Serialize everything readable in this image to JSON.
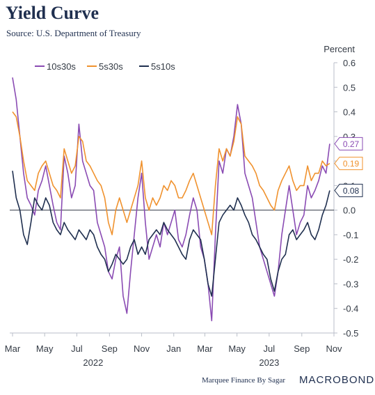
{
  "header": {
    "title": "Yield Curve",
    "subtitle": "Source: U.S. Department of Treasury"
  },
  "footer": {
    "credit": "Marquee Finance By Sagar",
    "brand": "MACROBOND"
  },
  "chart_data": {
    "type": "line",
    "title": "Yield Curve",
    "subtitle": "Source: U.S. Department of Treasury",
    "ylabel": "Percent",
    "ylim": [
      -0.5,
      0.6
    ],
    "yticks": [
      -0.5,
      -0.4,
      -0.3,
      -0.2,
      -0.1,
      0.0,
      0.1,
      0.2,
      0.3,
      0.4,
      0.5,
      0.6
    ],
    "ytick_labels": [
      "-0.5",
      "-0.4",
      "-0.3",
      "-0.2",
      "-0.1",
      "0.0",
      "0.1",
      "0.2",
      "0.3",
      "0.4",
      "0.5",
      "0.6"
    ],
    "xlim": [
      "2022-03-01",
      "2023-11-01"
    ],
    "xticks": [
      "2022-03-01",
      "2022-05-01",
      "2022-07-01",
      "2022-09-01",
      "2022-11-01",
      "2023-01-01",
      "2023-03-01",
      "2023-05-01",
      "2023-07-01",
      "2023-09-01",
      "2023-11-01"
    ],
    "xtick_labels": [
      "Mar",
      "May",
      "Jul",
      "Sep",
      "Nov",
      "Jan",
      "Mar",
      "May",
      "Jul",
      "Sep",
      "Nov"
    ],
    "year_labels": [
      {
        "label": "2022",
        "date": "2022-08-01"
      },
      {
        "label": "2023",
        "date": "2023-07-01"
      }
    ],
    "zero_line": true,
    "grid": false,
    "legend": "top-left",
    "series": [
      {
        "name": "10s30s",
        "color": "#8a4bb3",
        "end_label": "0.27",
        "x": [
          "2022-03-01",
          "2022-03-08",
          "2022-03-15",
          "2022-03-22",
          "2022-03-29",
          "2022-04-05",
          "2022-04-12",
          "2022-04-19",
          "2022-04-26",
          "2022-05-03",
          "2022-05-10",
          "2022-05-17",
          "2022-05-24",
          "2022-05-31",
          "2022-06-07",
          "2022-06-14",
          "2022-06-21",
          "2022-06-28",
          "2022-07-05",
          "2022-07-12",
          "2022-07-19",
          "2022-07-26",
          "2022-08-02",
          "2022-08-09",
          "2022-08-16",
          "2022-08-23",
          "2022-08-30",
          "2022-09-06",
          "2022-09-13",
          "2022-09-20",
          "2022-09-27",
          "2022-10-04",
          "2022-10-11",
          "2022-10-18",
          "2022-10-25",
          "2022-11-01",
          "2022-11-08",
          "2022-11-15",
          "2022-11-22",
          "2022-11-29",
          "2022-12-06",
          "2022-12-13",
          "2022-12-20",
          "2022-12-27",
          "2023-01-03",
          "2023-01-10",
          "2023-01-17",
          "2023-01-24",
          "2023-01-31",
          "2023-02-07",
          "2023-02-14",
          "2023-02-21",
          "2023-02-28",
          "2023-03-07",
          "2023-03-14",
          "2023-03-21",
          "2023-03-28",
          "2023-04-04",
          "2023-04-11",
          "2023-04-18",
          "2023-04-25",
          "2023-05-02",
          "2023-05-09",
          "2023-05-16",
          "2023-05-23",
          "2023-05-30",
          "2023-06-06",
          "2023-06-13",
          "2023-06-20",
          "2023-06-27",
          "2023-07-04",
          "2023-07-11",
          "2023-07-18",
          "2023-07-25",
          "2023-08-01",
          "2023-08-08",
          "2023-08-15",
          "2023-08-22",
          "2023-08-29",
          "2023-09-05",
          "2023-09-12",
          "2023-09-19",
          "2023-09-26",
          "2023-10-03",
          "2023-10-10",
          "2023-10-17",
          "2023-10-24"
        ],
        "values": [
          0.54,
          0.45,
          0.3,
          0.15,
          0.05,
          0.02,
          -0.02,
          0.08,
          0.12,
          0.18,
          0.1,
          0.02,
          -0.05,
          -0.08,
          0.22,
          0.15,
          0.05,
          0.1,
          0.35,
          0.2,
          0.15,
          0.1,
          0.08,
          -0.05,
          -0.1,
          -0.15,
          -0.25,
          -0.28,
          -0.2,
          -0.15,
          -0.35,
          -0.42,
          -0.25,
          -0.1,
          0.05,
          0.15,
          -0.05,
          -0.2,
          -0.15,
          -0.1,
          -0.15,
          -0.05,
          -0.1,
          -0.05,
          0.0,
          -0.12,
          -0.15,
          -0.1,
          -0.02,
          0.05,
          0.0,
          -0.15,
          -0.2,
          -0.3,
          -0.45,
          -0.1,
          0.2,
          0.15,
          0.25,
          0.22,
          0.3,
          0.43,
          0.35,
          0.15,
          0.1,
          0.05,
          -0.05,
          -0.15,
          -0.2,
          -0.25,
          -0.3,
          -0.35,
          -0.25,
          -0.1,
          0.0,
          0.1,
          0.0,
          -0.1,
          -0.05,
          -0.02,
          0.1,
          0.05,
          0.08,
          0.12,
          0.18,
          0.15,
          0.27
        ]
      },
      {
        "name": "5s30s",
        "color": "#f0922e",
        "end_label": "0.19",
        "x": [
          "2022-03-01",
          "2022-03-08",
          "2022-03-15",
          "2022-03-22",
          "2022-03-29",
          "2022-04-05",
          "2022-04-12",
          "2022-04-19",
          "2022-04-26",
          "2022-05-03",
          "2022-05-10",
          "2022-05-17",
          "2022-05-24",
          "2022-05-31",
          "2022-06-07",
          "2022-06-14",
          "2022-06-21",
          "2022-06-28",
          "2022-07-05",
          "2022-07-12",
          "2022-07-19",
          "2022-07-26",
          "2022-08-02",
          "2022-08-09",
          "2022-08-16",
          "2022-08-23",
          "2022-08-30",
          "2022-09-06",
          "2022-09-13",
          "2022-09-20",
          "2022-09-27",
          "2022-10-04",
          "2022-10-11",
          "2022-10-18",
          "2022-10-25",
          "2022-11-01",
          "2022-11-08",
          "2022-11-15",
          "2022-11-22",
          "2022-11-29",
          "2022-12-06",
          "2022-12-13",
          "2022-12-20",
          "2022-12-27",
          "2023-01-03",
          "2023-01-10",
          "2023-01-17",
          "2023-01-24",
          "2023-01-31",
          "2023-02-07",
          "2023-02-14",
          "2023-02-21",
          "2023-02-28",
          "2023-03-07",
          "2023-03-14",
          "2023-03-21",
          "2023-03-28",
          "2023-04-04",
          "2023-04-11",
          "2023-04-18",
          "2023-04-25",
          "2023-05-02",
          "2023-05-09",
          "2023-05-16",
          "2023-05-23",
          "2023-05-30",
          "2023-06-06",
          "2023-06-13",
          "2023-06-20",
          "2023-06-27",
          "2023-07-04",
          "2023-07-11",
          "2023-07-18",
          "2023-07-25",
          "2023-08-01",
          "2023-08-08",
          "2023-08-15",
          "2023-08-22",
          "2023-08-29",
          "2023-09-05",
          "2023-09-12",
          "2023-09-19",
          "2023-09-26",
          "2023-10-03",
          "2023-10-10",
          "2023-10-17",
          "2023-10-24"
        ],
        "values": [
          0.4,
          0.38,
          0.3,
          0.2,
          0.12,
          0.1,
          0.08,
          0.15,
          0.18,
          0.2,
          0.15,
          0.1,
          0.08,
          0.05,
          0.25,
          0.2,
          0.15,
          0.18,
          0.3,
          0.28,
          0.2,
          0.18,
          0.15,
          0.12,
          0.1,
          0.05,
          -0.05,
          -0.1,
          0.0,
          0.05,
          0.0,
          -0.05,
          0.0,
          0.05,
          0.1,
          0.2,
          0.05,
          0.0,
          0.05,
          0.02,
          0.05,
          0.1,
          0.08,
          0.12,
          0.1,
          0.05,
          0.05,
          0.08,
          0.12,
          0.15,
          0.1,
          0.05,
          0.0,
          -0.05,
          -0.1,
          0.1,
          0.25,
          0.2,
          0.25,
          0.22,
          0.28,
          0.38,
          0.35,
          0.22,
          0.2,
          0.18,
          0.15,
          0.1,
          0.08,
          0.05,
          0.02,
          0.0,
          0.08,
          0.12,
          0.15,
          0.18,
          0.12,
          0.08,
          0.1,
          0.1,
          0.18,
          0.12,
          0.15,
          0.15,
          0.2,
          0.18,
          0.19
        ]
      },
      {
        "name": "5s10s",
        "color": "#1f2f4f",
        "end_label": "0.08",
        "x": [
          "2022-03-01",
          "2022-03-08",
          "2022-03-15",
          "2022-03-22",
          "2022-03-29",
          "2022-04-05",
          "2022-04-12",
          "2022-04-19",
          "2022-04-26",
          "2022-05-03",
          "2022-05-10",
          "2022-05-17",
          "2022-05-24",
          "2022-05-31",
          "2022-06-07",
          "2022-06-14",
          "2022-06-21",
          "2022-06-28",
          "2022-07-05",
          "2022-07-12",
          "2022-07-19",
          "2022-07-26",
          "2022-08-02",
          "2022-08-09",
          "2022-08-16",
          "2022-08-23",
          "2022-08-30",
          "2022-09-06",
          "2022-09-13",
          "2022-09-20",
          "2022-09-27",
          "2022-10-04",
          "2022-10-11",
          "2022-10-18",
          "2022-10-25",
          "2022-11-01",
          "2022-11-08",
          "2022-11-15",
          "2022-11-22",
          "2022-11-29",
          "2022-12-06",
          "2022-12-13",
          "2022-12-20",
          "2022-12-27",
          "2023-01-03",
          "2023-01-10",
          "2023-01-17",
          "2023-01-24",
          "2023-01-31",
          "2023-02-07",
          "2023-02-14",
          "2023-02-21",
          "2023-02-28",
          "2023-03-07",
          "2023-03-14",
          "2023-03-21",
          "2023-03-28",
          "2023-04-04",
          "2023-04-11",
          "2023-04-18",
          "2023-04-25",
          "2023-05-02",
          "2023-05-09",
          "2023-05-16",
          "2023-05-23",
          "2023-05-30",
          "2023-06-06",
          "2023-06-13",
          "2023-06-20",
          "2023-06-27",
          "2023-07-04",
          "2023-07-11",
          "2023-07-18",
          "2023-07-25",
          "2023-08-01",
          "2023-08-08",
          "2023-08-15",
          "2023-08-22",
          "2023-08-29",
          "2023-09-05",
          "2023-09-12",
          "2023-09-19",
          "2023-09-26",
          "2023-10-03",
          "2023-10-10",
          "2023-10-17",
          "2023-10-24"
        ],
        "values": [
          0.16,
          0.05,
          0.0,
          -0.1,
          -0.14,
          -0.05,
          0.05,
          0.02,
          0.0,
          0.05,
          0.02,
          -0.05,
          -0.08,
          -0.1,
          -0.05,
          -0.08,
          -0.1,
          -0.12,
          -0.08,
          -0.1,
          -0.12,
          -0.08,
          -0.1,
          -0.15,
          -0.18,
          -0.2,
          -0.25,
          -0.22,
          -0.18,
          -0.2,
          -0.22,
          -0.2,
          -0.15,
          -0.12,
          -0.18,
          -0.15,
          -0.18,
          -0.12,
          -0.1,
          -0.08,
          -0.1,
          -0.05,
          -0.08,
          -0.1,
          -0.12,
          -0.15,
          -0.18,
          -0.2,
          -0.12,
          -0.08,
          -0.1,
          -0.12,
          -0.2,
          -0.3,
          -0.35,
          -0.2,
          -0.05,
          -0.02,
          0.0,
          0.02,
          0.0,
          0.05,
          0.02,
          -0.02,
          -0.05,
          -0.1,
          -0.12,
          -0.15,
          -0.18,
          -0.2,
          -0.28,
          -0.33,
          -0.25,
          -0.2,
          -0.18,
          -0.1,
          -0.08,
          -0.12,
          -0.1,
          -0.08,
          -0.05,
          -0.1,
          -0.12,
          -0.08,
          -0.02,
          0.02,
          0.08
        ]
      }
    ]
  }
}
